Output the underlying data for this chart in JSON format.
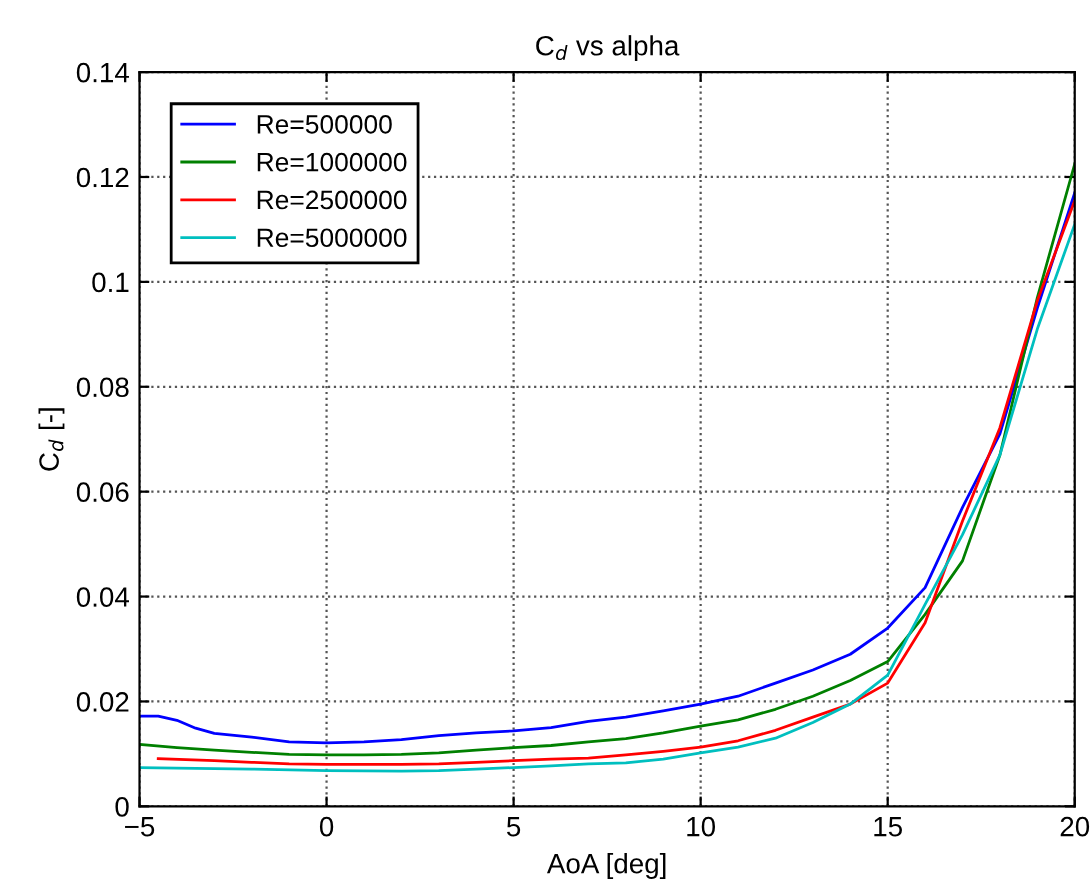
{
  "chart_data": {
    "type": "line",
    "title": "C$_{d}$ vs alpha",
    "xlabel": "AoA [deg]",
    "ylabel": "C$_{d}$ [-]",
    "xlim": [
      -5,
      20
    ],
    "ylim": [
      0,
      0.14
    ],
    "xticks": [
      {
        "value": -5,
        "label": "−5"
      },
      0,
      5,
      10,
      15,
      20
    ],
    "yticks": [
      0,
      0.02,
      0.04,
      0.06,
      0.08,
      0.1,
      0.12,
      0.14
    ],
    "grid": true,
    "line_style": "solid",
    "legend": "top left",
    "series": [
      {
        "name": "Re=500000",
        "color": "#0000ff",
        "x": [
          -5,
          -4.5,
          -4,
          -3.5,
          -3,
          -2,
          -1,
          0,
          1,
          2,
          3,
          4,
          5,
          6,
          7,
          8,
          9,
          10,
          11,
          12,
          13,
          14,
          15,
          16,
          17,
          18,
          19,
          20
        ],
        "values": [
          0.0172,
          0.0172,
          0.0164,
          0.0149,
          0.0139,
          0.0132,
          0.0123,
          0.0121,
          0.0123,
          0.0127,
          0.0135,
          0.014,
          0.0144,
          0.015,
          0.0162,
          0.017,
          0.0182,
          0.0195,
          0.021,
          0.0235,
          0.026,
          0.029,
          0.034,
          0.0417,
          0.057,
          0.071,
          0.095,
          0.117
        ]
      },
      {
        "name": "Re=1000000",
        "color": "#008000",
        "x": [
          -5,
          -4,
          -3,
          -2,
          -1,
          0,
          1,
          2,
          3,
          4,
          5,
          6,
          7,
          8,
          9,
          10,
          11,
          12,
          13,
          14,
          15,
          16,
          17,
          18,
          19,
          20
        ],
        "values": [
          0.0118,
          0.0112,
          0.0107,
          0.0103,
          0.0099,
          0.0098,
          0.0098,
          0.0099,
          0.0102,
          0.0107,
          0.0112,
          0.0116,
          0.0123,
          0.0129,
          0.014,
          0.0153,
          0.0165,
          0.0185,
          0.021,
          0.024,
          0.0276,
          0.0366,
          0.0468,
          0.067,
          0.097,
          0.1225
        ]
      },
      {
        "name": "Re=2500000",
        "color": "#ff0000",
        "x": [
          -4.5,
          -3,
          -2,
          -1,
          0,
          1,
          2,
          3,
          4,
          5,
          6,
          7,
          8,
          9,
          10,
          11,
          12,
          13,
          14,
          15,
          16,
          17,
          18,
          19,
          20
        ],
        "values": [
          0.0091,
          0.0087,
          0.0084,
          0.0081,
          0.008,
          0.008,
          0.008,
          0.0081,
          0.0084,
          0.0087,
          0.009,
          0.0092,
          0.0098,
          0.0105,
          0.0113,
          0.0125,
          0.0145,
          0.017,
          0.0195,
          0.0235,
          0.035,
          0.0544,
          0.0722,
          0.0964,
          0.1155
        ]
      },
      {
        "name": "Re=5000000",
        "color": "#00bfbf",
        "x": [
          -5,
          -4,
          -2,
          0,
          2,
          3,
          4,
          5,
          6,
          7,
          8,
          9,
          10,
          11,
          12,
          13,
          14,
          15,
          16,
          17,
          18,
          19,
          20
        ],
        "values": [
          0.0074,
          0.0073,
          0.0071,
          0.0068,
          0.0067,
          0.0068,
          0.0071,
          0.0074,
          0.0077,
          0.0081,
          0.0083,
          0.009,
          0.0102,
          0.0113,
          0.013,
          0.016,
          0.0195,
          0.025,
          0.0385,
          0.0518,
          0.067,
          0.091,
          0.111
        ]
      }
    ]
  }
}
